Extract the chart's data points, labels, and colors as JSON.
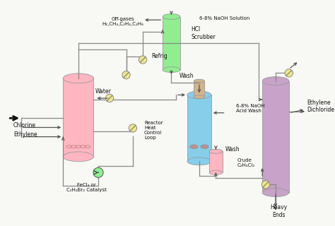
{
  "bg_color": "#f8f8f5",
  "reactor_color": "#FFB6C1",
  "scrubber_color": "#90EE90",
  "acid_wash_color": "#87CEEB",
  "distill_color": "#C8A2C8",
  "pump_color": "#90EE90",
  "crude_vessel_color": "#FFB6C1",
  "top_vessel_color": "#D2B48C",
  "valve_color": "#F0E68C",
  "line_color": "#888888",
  "arrow_color": "#555555",
  "labels": {
    "off_gases": "Off-gases\nH₂,CH₄,C₂H₄,C₂H₆",
    "naoh_solution": "6-8% NaOH Solution",
    "hcl_scrubber": "HCl\nScrubber",
    "wash1": "Wash",
    "refrig": "Refrig",
    "water": "Water",
    "chlorine": "Chlorine",
    "ethylene": "Ethylene",
    "reactor_heat": "Reactor\nHeat\nControl\nLoop",
    "catalyst": "FeCl₃ or\nC₂H₄Br₂ Catalyst",
    "naoh_acid": "6-8% NaOH\nAcid Wash",
    "wash2": "↑Wash",
    "crude": "Crude\nC₂H₄Cl₂",
    "ethylene_dichloride": "Ethylene\nDichloride",
    "heavy_ends": "Heavy\nEnds"
  }
}
